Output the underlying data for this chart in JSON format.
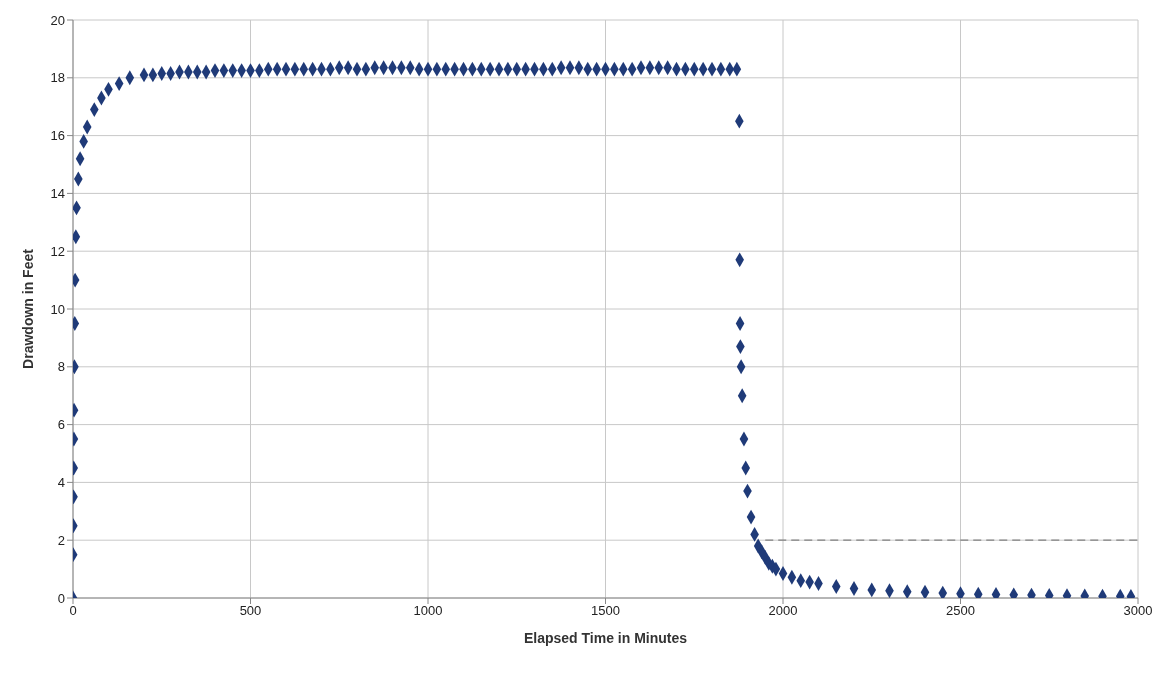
{
  "chart_data": {
    "type": "scatter",
    "xlabel": "Elapsed Time in Minutes",
    "ylabel": "Drawdown in Feet",
    "xlim": [
      0,
      3000
    ],
    "ylim": [
      0,
      20
    ],
    "xticks": [
      0,
      500,
      1000,
      1500,
      2000,
      2500,
      3000
    ],
    "yticks": [
      0,
      2,
      4,
      6,
      8,
      10,
      12,
      14,
      16,
      18,
      20
    ],
    "grid": true,
    "marker": "diamond",
    "series": [
      {
        "color": "#1f3a78",
        "x": [
          0,
          0.5,
          1,
          1.5,
          2,
          2.5,
          3,
          4,
          5,
          6,
          8,
          10,
          15,
          20,
          30,
          40,
          60,
          80,
          100,
          130,
          160,
          200,
          225,
          250,
          275,
          300,
          325,
          350,
          375,
          400,
          425,
          450,
          475,
          500,
          525,
          550,
          575,
          600,
          625,
          650,
          675,
          700,
          725,
          750,
          775,
          800,
          825,
          850,
          875,
          900,
          925,
          950,
          975,
          1000,
          1025,
          1050,
          1075,
          1100,
          1125,
          1150,
          1175,
          1200,
          1225,
          1250,
          1275,
          1300,
          1325,
          1350,
          1375,
          1400,
          1425,
          1450,
          1475,
          1500,
          1525,
          1550,
          1575,
          1600,
          1625,
          1650,
          1675,
          1700,
          1725,
          1750,
          1775,
          1800,
          1825,
          1850,
          1870,
          1877,
          1878,
          1879,
          1880,
          1882,
          1885,
          1890,
          1895,
          1900,
          1910,
          1920,
          1930,
          1940,
          1950,
          1960,
          1970,
          1980,
          2000,
          2025,
          2050,
          2075,
          2100,
          2150,
          2200,
          2250,
          2300,
          2350,
          2400,
          2450,
          2500,
          2550,
          2600,
          2650,
          2700,
          2750,
          2800,
          2850,
          2900,
          2950,
          2980
        ],
        "values": [
          0,
          1.5,
          2.5,
          3.5,
          4.5,
          5.5,
          6.5,
          8,
          9.5,
          11,
          12.5,
          13.5,
          14.5,
          15.2,
          15.8,
          16.3,
          16.9,
          17.3,
          17.6,
          17.8,
          18,
          18.1,
          18.1,
          18.15,
          18.15,
          18.2,
          18.2,
          18.2,
          18.2,
          18.25,
          18.25,
          18.25,
          18.25,
          18.25,
          18.25,
          18.3,
          18.3,
          18.3,
          18.3,
          18.3,
          18.3,
          18.3,
          18.3,
          18.35,
          18.35,
          18.3,
          18.3,
          18.35,
          18.35,
          18.35,
          18.35,
          18.35,
          18.3,
          18.3,
          18.3,
          18.3,
          18.3,
          18.3,
          18.3,
          18.3,
          18.3,
          18.3,
          18.3,
          18.3,
          18.3,
          18.3,
          18.3,
          18.3,
          18.35,
          18.35,
          18.35,
          18.3,
          18.3,
          18.3,
          18.3,
          18.3,
          18.3,
          18.35,
          18.35,
          18.35,
          18.35,
          18.3,
          18.3,
          18.3,
          18.3,
          18.3,
          18.3,
          18.3,
          18.3,
          16.5,
          11.7,
          9.5,
          8.7,
          8,
          7,
          5.5,
          4.5,
          3.7,
          2.8,
          2.2,
          1.8,
          1.6,
          1.4,
          1.2,
          1.1,
          1,
          0.85,
          0.72,
          0.6,
          0.55,
          0.5,
          0.4,
          0.33,
          0.28,
          0.25,
          0.22,
          0.2,
          0.17,
          0.15,
          0.13,
          0.12,
          0.11,
          0.1,
          0.09,
          0.08,
          0.07,
          0.06,
          0.06,
          0.05
        ]
      },
      {
        "type": "line",
        "color": "#808080",
        "line_style": "dashed",
        "marker": "none",
        "x": [
          1950,
          3000
        ],
        "values": [
          2,
          2
        ]
      }
    ]
  }
}
